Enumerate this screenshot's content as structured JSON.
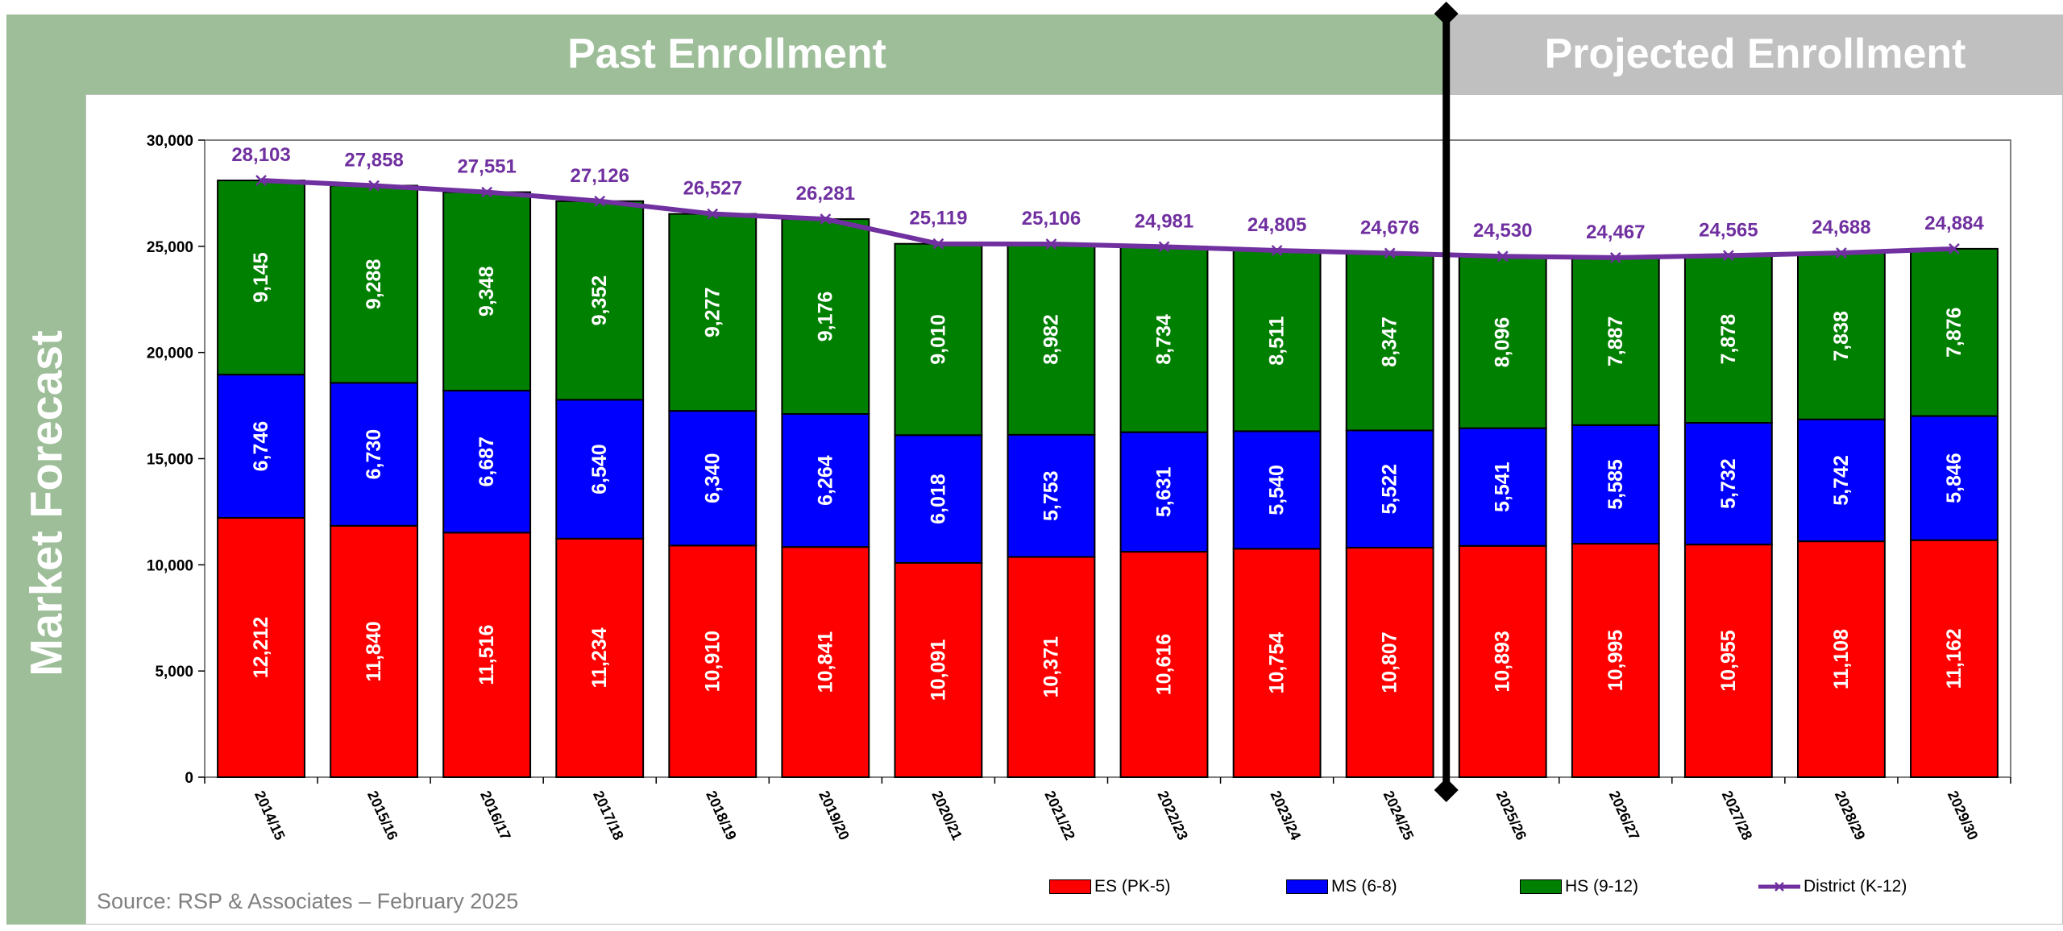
{
  "headers": {
    "past": "Past Enrollment",
    "projected": "Projected Enrollment",
    "side": "Market Forecast"
  },
  "source": "Source: RSP & Associates – February 2025",
  "colors": {
    "band_past": "#9dbe98",
    "band_projected": "#c0c0c0",
    "es": "#ff0000",
    "ms": "#0000ff",
    "hs": "#008000",
    "district": "#7030a0"
  },
  "chart_data": {
    "type": "bar",
    "stacked": true,
    "title": "",
    "xlabel": "",
    "ylabel": "",
    "ylim": [
      0,
      30000
    ],
    "y_ticks": [
      "0",
      "5,000",
      "10,000",
      "15,000",
      "20,000",
      "25,000",
      "30,000"
    ],
    "y_tick_values": [
      0,
      5000,
      10000,
      15000,
      20000,
      25000,
      30000
    ],
    "categories": [
      "2014/15",
      "2015/16",
      "2016/17",
      "2017/18",
      "2018/19",
      "2019/20",
      "2020/21",
      "2021/22",
      "2022/23",
      "2023/24",
      "2024/25",
      "2025/26",
      "2026/27",
      "2027/28",
      "2028/29",
      "2029/30"
    ],
    "series": [
      {
        "name": "ES (PK-5)",
        "key": "es",
        "values": [
          12212,
          11840,
          11516,
          11234,
          10910,
          10841,
          10091,
          10371,
          10616,
          10754,
          10807,
          10893,
          10995,
          10955,
          11108,
          11162
        ],
        "labels": [
          "12,212",
          "11,840",
          "11,516",
          "11,234",
          "10,910",
          "10,841",
          "10,091",
          "10,371",
          "10,616",
          "10,754",
          "10,807",
          "10,893",
          "10,995",
          "10,955",
          "11,108",
          "11,162"
        ]
      },
      {
        "name": "MS (6-8)",
        "key": "ms",
        "values": [
          6746,
          6730,
          6687,
          6540,
          6340,
          6264,
          6018,
          5753,
          5631,
          5540,
          5522,
          5541,
          5585,
          5732,
          5742,
          5846
        ],
        "labels": [
          "6,746",
          "6,730",
          "6,687",
          "6,540",
          "6,340",
          "6,264",
          "6,018",
          "5,753",
          "5,631",
          "5,540",
          "5,522",
          "5,541",
          "5,585",
          "5,732",
          "5,742",
          "5,846"
        ]
      },
      {
        "name": "HS (9-12)",
        "key": "hs",
        "values": [
          9145,
          9288,
          9348,
          9352,
          9277,
          9176,
          9010,
          8982,
          8734,
          8511,
          8347,
          8096,
          7887,
          7878,
          7838,
          7876
        ],
        "labels": [
          "9,145",
          "9,288",
          "9,348",
          "9,352",
          "9,277",
          "9,176",
          "9,010",
          "8,982",
          "8,734",
          "8,511",
          "8,347",
          "8,096",
          "7,887",
          "7,878",
          "7,838",
          "7,876"
        ]
      }
    ],
    "line": {
      "name": "District (K-12)",
      "key": "district",
      "values": [
        28103,
        27858,
        27551,
        27126,
        26527,
        26281,
        25119,
        25106,
        24981,
        24805,
        24676,
        24530,
        24467,
        24565,
        24688,
        24884
      ],
      "labels": [
        "28,103",
        "27,858",
        "27,551",
        "27,126",
        "26,527",
        "26,281",
        "25,119",
        "25,106",
        "24,981",
        "24,805",
        "24,676",
        "24,530",
        "24,467",
        "24,565",
        "24,688",
        "24,884"
      ]
    },
    "divider_after_category": "2024/25",
    "legend_position": "bottom-right",
    "grid": false
  }
}
